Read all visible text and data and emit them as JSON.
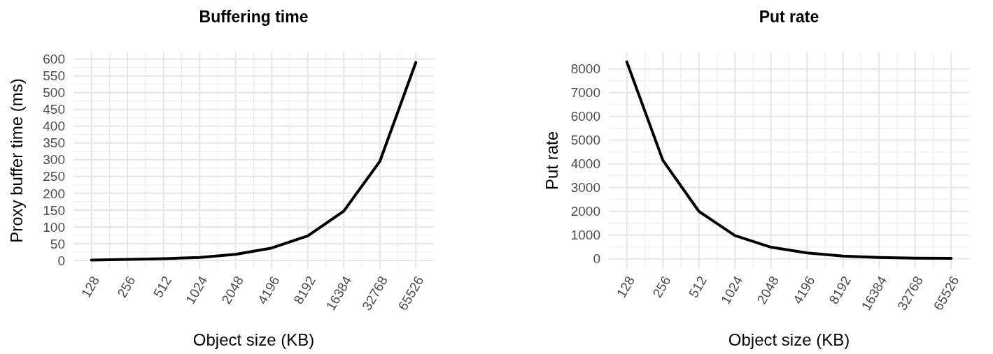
{
  "chart_data": [
    {
      "type": "line",
      "title": "Buffering time",
      "xlabel": "Object size (KB)",
      "ylabel": "Proxy buffer time (ms)",
      "categories": [
        "128",
        "256",
        "512",
        "1024",
        "2048",
        "4196",
        "8192",
        "16384",
        "32768",
        "65526"
      ],
      "series": [
        {
          "color": "#000000",
          "values": [
            1,
            3,
            5,
            9,
            18,
            37,
            73,
            147,
            295,
            590
          ]
        }
      ],
      "ylim": [
        -25,
        620
      ],
      "yticks": [
        0,
        50,
        100,
        150,
        200,
        250,
        300,
        350,
        400,
        450,
        500,
        550,
        600
      ],
      "grid": true
    },
    {
      "type": "line",
      "title": "Put rate",
      "xlabel": "Object size (KB)",
      "ylabel": "Put rate",
      "categories": [
        "128",
        "256",
        "512",
        "1024",
        "2048",
        "4196",
        "8192",
        "16384",
        "32768",
        "65526"
      ],
      "series": [
        {
          "color": "#000000",
          "values": [
            8300,
            4150,
            2000,
            980,
            490,
            250,
            120,
            60,
            30,
            20
          ]
        }
      ],
      "ylim": [
        -420,
        8700
      ],
      "yticks": [
        0,
        1000,
        2000,
        3000,
        4000,
        5000,
        6000,
        7000,
        8000
      ],
      "grid": true
    }
  ]
}
